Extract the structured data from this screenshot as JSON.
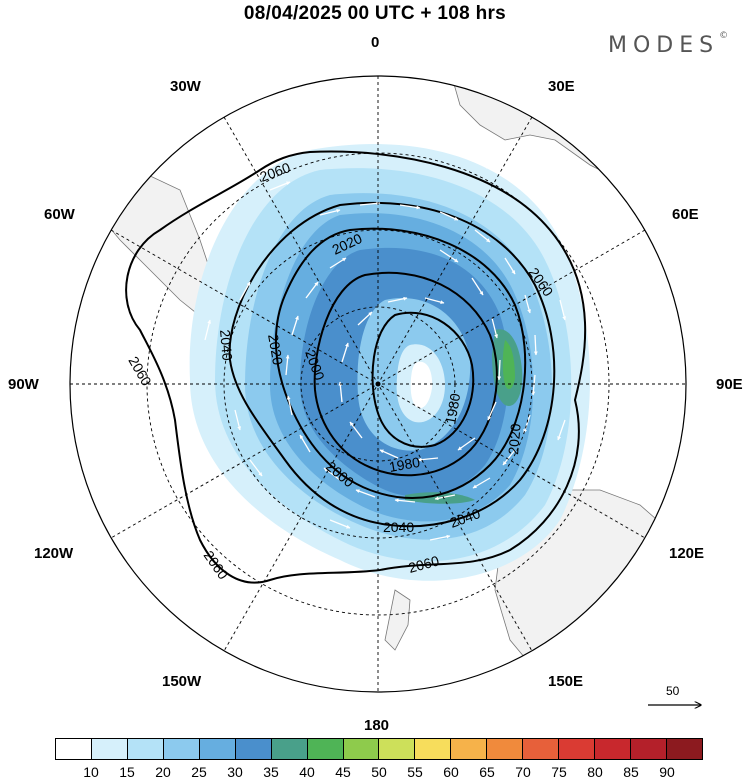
{
  "header": {
    "title": "08/04/2025  00 UTC  + 108 hrs",
    "brand": "MODES",
    "brand_mark": "©"
  },
  "map": {
    "projection": "south-polar-stereographic",
    "longitude_labels": [
      {
        "key": "0",
        "text": "0"
      },
      {
        "key": "30E",
        "text": "30E"
      },
      {
        "key": "60E",
        "text": "60E"
      },
      {
        "key": "90E",
        "text": "90E"
      },
      {
        "key": "120E",
        "text": "120E"
      },
      {
        "key": "150E",
        "text": "150E"
      },
      {
        "key": "180",
        "text": "180"
      },
      {
        "key": "150W",
        "text": "150W"
      },
      {
        "key": "120W",
        "text": "120W"
      },
      {
        "key": "90W",
        "text": "90W"
      },
      {
        "key": "60W",
        "text": "60W"
      },
      {
        "key": "30W",
        "text": "30W"
      }
    ],
    "contour_labels": [
      "2060",
      "2020",
      "2060",
      "2040",
      "2020",
      "2000",
      "1980",
      "2020",
      "1980",
      "2000",
      "2040",
      "2040",
      "2060",
      "2060",
      "2060"
    ],
    "contour_values": [
      1980,
      2000,
      2020,
      2040,
      2060
    ],
    "shading_field": "wind speed",
    "land_color": "#f2f2f2",
    "coast_color": "#777777"
  },
  "colorbar": {
    "levels": [
      "10",
      "15",
      "20",
      "25",
      "30",
      "35",
      "40",
      "45",
      "50",
      "55",
      "60",
      "65",
      "70",
      "75",
      "80",
      "85",
      "90"
    ],
    "colors": [
      "#ffffff",
      "#d6f0fb",
      "#b4e2f7",
      "#8ccaee",
      "#66aee0",
      "#4a8fcc",
      "#49a08a",
      "#4fb456",
      "#8ecb4c",
      "#cde05a",
      "#f7dd5c",
      "#f6b24a",
      "#f08a3c",
      "#e7603a",
      "#da3b33",
      "#c8282d",
      "#b4202a",
      "#8c1a1f"
    ]
  },
  "reference_vector": {
    "label": "50"
  }
}
